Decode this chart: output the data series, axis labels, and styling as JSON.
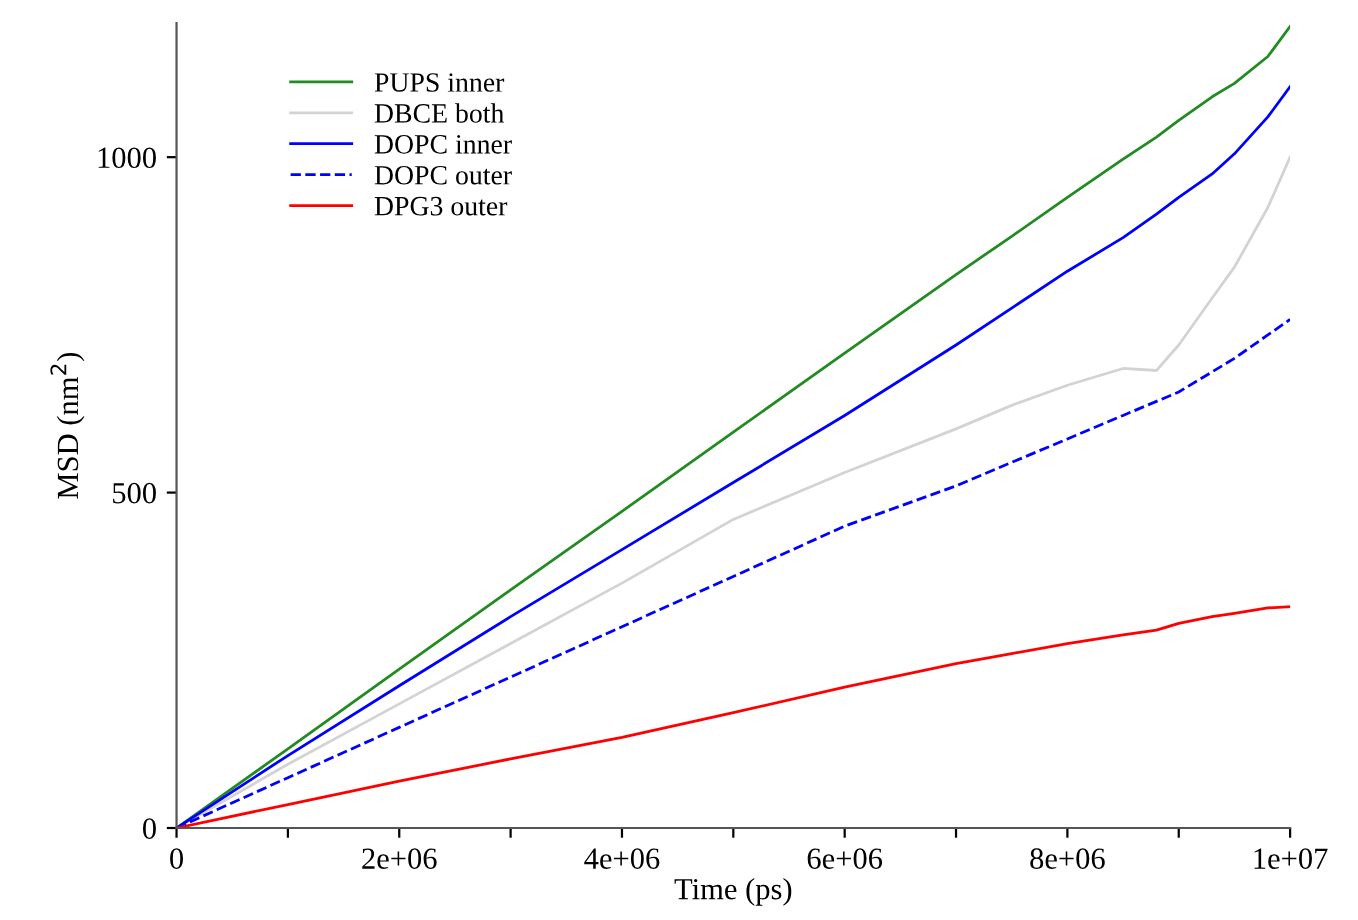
{
  "chart_data": {
    "type": "line",
    "xlabel": "Time (ps)",
    "ylabel": "MSD (nm$^{2}$)",
    "x": [
      0,
      1000000,
      2000000,
      3000000,
      4000000,
      5000000,
      6000000,
      7000000,
      7500000,
      8000000,
      8500000,
      8800000,
      9000000,
      9300000,
      9500000,
      9800000,
      10000000
    ],
    "xlim": [
      0,
      10000000
    ],
    "ylim": [
      0,
      1200
    ],
    "xticks": [
      0,
      {
        "value": 1000000,
        "label": null
      },
      {
        "value": 2000000,
        "label": "2e+06"
      },
      {
        "value": 3000000,
        "label": null
      },
      {
        "value": 4000000,
        "label": "4e+06"
      },
      {
        "value": 5000000,
        "label": null
      },
      {
        "value": 6000000,
        "label": "6e+06"
      },
      {
        "value": 7000000,
        "label": null
      },
      {
        "value": 8000000,
        "label": "8e+06"
      },
      {
        "value": 9000000,
        "label": null
      },
      {
        "value": 10000000,
        "label": "1e+07"
      }
    ],
    "yticks": [
      0,
      500,
      1000
    ],
    "grid": false,
    "legend": "top left",
    "series": [
      {
        "name": "PUPS inner",
        "color": "#228b22",
        "line_style": "solid",
        "values": [
          0,
          118,
          237,
          355,
          472,
          590,
          708,
          825,
          882,
          940,
          997,
          1030,
          1055,
          1090,
          1110,
          1150,
          1195
        ]
      },
      {
        "name": "DBCE both",
        "color": "#d3d3d3",
        "line_style": "solid",
        "values": [
          0,
          95,
          185,
          275,
          365,
          460,
          530,
          595,
          630,
          660,
          685,
          682,
          720,
          790,
          836,
          925,
          1000
        ]
      },
      {
        "name": "DOPC inner",
        "color": "#0000ff",
        "line_style": "solid",
        "values": [
          0,
          108,
          212,
          315,
          415,
          515,
          615,
          720,
          775,
          830,
          880,
          915,
          940,
          975,
          1005,
          1060,
          1105
        ]
      },
      {
        "name": "DOPC outer",
        "color": "#0000ff",
        "line_style": "dashed",
        "values": [
          0,
          75,
          150,
          225,
          300,
          375,
          450,
          510,
          545,
          580,
          615,
          636,
          650,
          680,
          700,
          735,
          758
        ]
      },
      {
        "name": "DPG3 outer",
        "color": "#ff0000",
        "line_style": "solid",
        "values": [
          0,
          35,
          70,
          103,
          135,
          172,
          210,
          245,
          260,
          275,
          288,
          295,
          305,
          315,
          320,
          328,
          330
        ]
      }
    ]
  }
}
